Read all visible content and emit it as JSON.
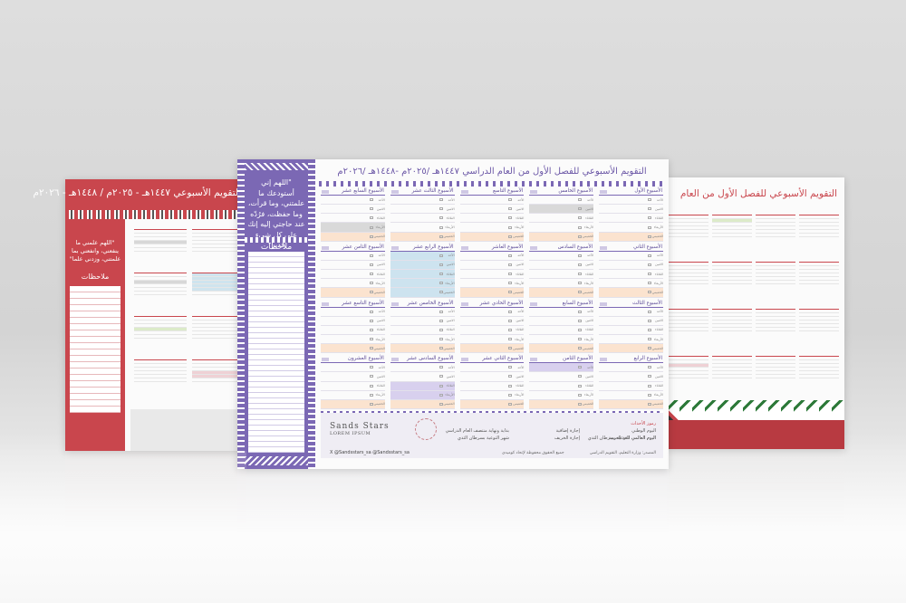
{
  "scene": "Three calendar sheets mockup",
  "center_sheet": {
    "title": "التقويم الأسبوعي للفصل الأول من العام الدراسي ١٤٤٧هـ /٢٠٢٥م -١٤٤٨هـ /٢٠٢٦م",
    "prayer": "\"اللهم إني أستودعك ما علمتني، وما قرأت، وما حفظت، فرُدّه عند حاجتي إليه إنك على كل شيء قدير\"",
    "notes_label": "ملاحظات",
    "weeks": [
      {
        "name": "الأسبوع الأول"
      },
      {
        "name": "الأسبوع الخامس"
      },
      {
        "name": "الأسبوع التاسع"
      },
      {
        "name": "الأسبوع الثالث عشر"
      },
      {
        "name": "الأسبوع السابع عشر"
      },
      {
        "name": "الأسبوع الثاني"
      },
      {
        "name": "الأسبوع السادس"
      },
      {
        "name": "الأسبوع العاشر"
      },
      {
        "name": "الأسبوع الرابع عشر"
      },
      {
        "name": "الأسبوع الثامن عشر"
      },
      {
        "name": "الأسبوع الثالث"
      },
      {
        "name": "الأسبوع السابع"
      },
      {
        "name": "الأسبوع الحادي عشر"
      },
      {
        "name": "الأسبوع الخامس عشر"
      },
      {
        "name": "الأسبوع التاسع عشر"
      },
      {
        "name": "الأسبوع الرابع"
      },
      {
        "name": "الأسبوع الثامن"
      },
      {
        "name": "الأسبوع الثاني عشر"
      },
      {
        "name": "الأسبوع السادس عشر"
      },
      {
        "name": "الأسبوع العشرون"
      }
    ],
    "days": [
      "الأحد",
      "الاثنين",
      "الثلاثاء",
      "الأربعاء",
      "الخميس"
    ],
    "legend": {
      "title": "رموز الأحداث",
      "col1": [
        "اليوم الوطني",
        "اليوم العالمي للغة العربية"
      ],
      "col2": [
        "إجازة إضافية",
        "إجازة الخريف"
      ],
      "col3": [
        "اليوم العالمي للتوعية بسرطان الثدي",
        "بداية ونهاية منتصف العام الدراسي"
      ],
      "col4": [
        "شهر التوعية بسرطان الثدي"
      ],
      "brand": "Sands Stars",
      "brand_sub": "LOREM IPSUM",
      "social": "X @Sandsstars_sa   @Sandsstars_sa",
      "rights": "جميع الحقوق محفوظة لإتحاد كوميدي",
      "source": "المصدر: وزارة التعليم، التقويم الدراسي"
    }
  },
  "left_sheet": {
    "title": "التقويم الأسبوعي ١٤٤٧هـ - ٢٠٢٥م / ١٤٤٨هـ - ٢٠٢٦م",
    "prayer": "\"اللهم علمني ما ينفعني، وانفعني بما علمتني، وزدني علما\"",
    "notes_label": "ملاحظات"
  },
  "right_sheet": {
    "title": "التقويم الأسبوعي للفصل الأول من العام"
  },
  "colors": {
    "purple": "#7b68b4",
    "red": "#c9464d",
    "peach": "#fbe3cf",
    "blue": "#cde3ef",
    "grey": "#d9d9d9"
  }
}
